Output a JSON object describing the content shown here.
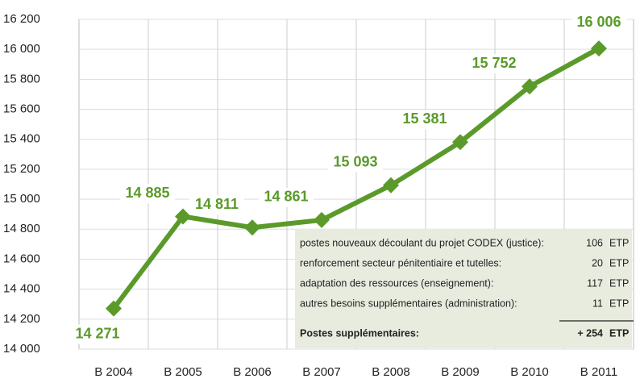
{
  "chart_data": {
    "type": "line",
    "categories": [
      "B 2004",
      "B 2005",
      "B 2006",
      "B 2007",
      "B 2008",
      "B 2009",
      "B 2010",
      "B 2011"
    ],
    "values": [
      14271,
      14885,
      14811,
      14861,
      15093,
      15381,
      15752,
      16006
    ],
    "value_labels": [
      "14 271",
      "14 885",
      "14 811",
      "14 861",
      "15 093",
      "15 381",
      "15 752",
      "16 006"
    ],
    "color": "#5a9a2a",
    "ylim": [
      14000,
      16200
    ],
    "yticks": [
      {
        "value": 14000,
        "label": "14 000"
      },
      {
        "value": 14200,
        "label": "14 200"
      },
      {
        "value": 14400,
        "label": "14 400"
      },
      {
        "value": 14600,
        "label": "14 600"
      },
      {
        "value": 14800,
        "label": "14 800"
      },
      {
        "value": 15000,
        "label": "15 000"
      },
      {
        "value": 15200,
        "label": "15 200"
      },
      {
        "value": 15400,
        "label": "15 400"
      },
      {
        "value": 15600,
        "label": "15 600"
      },
      {
        "value": 15800,
        "label": "15 800"
      },
      {
        "value": 16000,
        "label": "16 000"
      },
      {
        "value": 16200,
        "label": "16 200"
      }
    ],
    "grid": true,
    "annotation_table": {
      "rows": [
        [
          "postes nouveaux découlant du projet CODEX (justice):",
          "106",
          "ETP"
        ],
        [
          "renforcement secteur pénitentiaire et tutelles:",
          "20",
          "ETP"
        ],
        [
          "adaptation des ressources (enseignement):",
          "117",
          "ETP"
        ],
        [
          "autres besoins supplémentaires (administration):",
          "11",
          "ETP"
        ]
      ],
      "total": [
        "Postes supplémentaires:",
        "+ 254",
        "ETP"
      ]
    }
  }
}
